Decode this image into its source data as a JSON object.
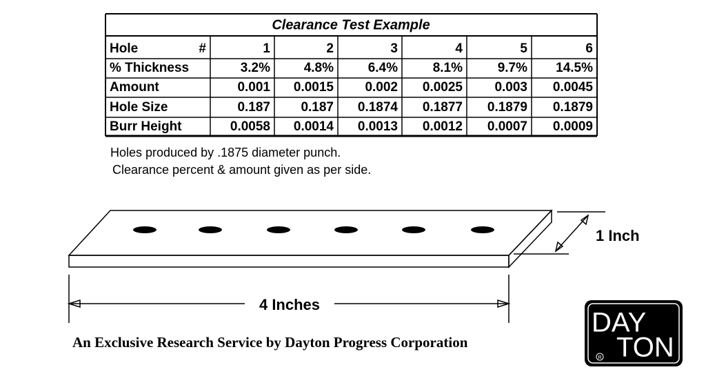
{
  "table": {
    "title": "Clearance Test Example",
    "header": {
      "label": "Hole",
      "mark": "#",
      "cells": [
        "1",
        "2",
        "3",
        "4",
        "5",
        "6"
      ]
    },
    "rows": [
      {
        "label": "% Thickness",
        "cells": [
          "3.2%",
          "4.8%",
          "6.4%",
          "8.1%",
          "9.7%",
          "14.5%"
        ]
      },
      {
        "label": "Amount",
        "cells": [
          "0.001",
          "0.0015",
          "0.002",
          "0.0025",
          "0.003",
          "0.0045"
        ]
      },
      {
        "label": "Hole Size",
        "cells": [
          "0.187",
          "0.187",
          "0.1874",
          "0.1877",
          "0.1879",
          "0.1879"
        ]
      },
      {
        "label": "Burr Height",
        "cells": [
          "0.0058",
          "0.0014",
          "0.0013",
          "0.0012",
          "0.0007",
          "0.0009"
        ]
      }
    ]
  },
  "notes": [
    "Holes produced by .1875 diameter punch.",
    "Clearance percent & amount given as per side."
  ],
  "diagram": {
    "width_label": "1 Inch",
    "length_label": "4 Inches"
  },
  "footer": "An Exclusive Research Service by Dayton Progress Corporation",
  "logo": {
    "line1": "DAY",
    "line2": "TON",
    "mark": "R"
  }
}
